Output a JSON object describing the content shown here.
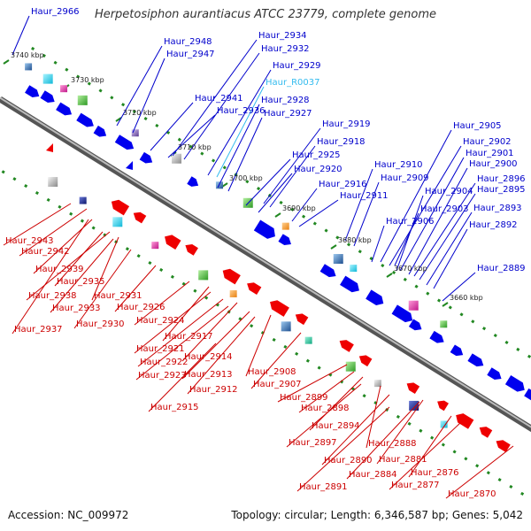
{
  "title": "Herpetosiphon aurantiacus ATCC 23779, complete genome",
  "footer": {
    "accession": "Accession: NC_009972",
    "summary": "Topology: circular; Length: 6,346,587 bp; Genes: 5,042"
  },
  "colors": {
    "plus_label": "#0000cc",
    "rna_label": "#33bbee",
    "minus_label": "#cc0000",
    "plus_arrow": "#0000ee",
    "minus_arrow": "#ee0000",
    "backbone": "#888888",
    "tick": "#228822"
  },
  "ticks": [
    "3740 kbp",
    "3730 kbp",
    "3720 kbp",
    "3710 kbp",
    "3700 kbp",
    "3690 kbp",
    "3680 kbp",
    "3670 kbp",
    "3660 kbp"
  ],
  "plus_labels": [
    "Haur_2966",
    "Haur_2948",
    "Haur_2947",
    "Haur_2934",
    "Haur_2932",
    "Haur_2929",
    "Haur_R0037",
    "Haur_2941",
    "Haur_2936",
    "Haur_2928",
    "Haur_2927",
    "Haur_2919",
    "Haur_2918",
    "Haur_2925",
    "Haur_2920",
    "Haur_2916",
    "Haur_2911",
    "Haur_2910",
    "Haur_2909",
    "Haur_2905",
    "Haur_2902",
    "Haur_2901",
    "Haur_2900",
    "Haur_2896",
    "Haur_2895",
    "Haur_2904",
    "Haur_2903",
    "Haur_2906",
    "Haur_2893",
    "Haur_2892",
    "Haur_2889"
  ],
  "minus_labels": [
    "Haur_2943",
    "Haur_2942",
    "Haur_2939",
    "Haur_2935",
    "Haur_2938",
    "Haur_2931",
    "Haur_2933",
    "Haur_2937",
    "Haur_2930",
    "Haur_2926",
    "Haur_2924",
    "Haur_2917",
    "Haur_2921",
    "Haur_2914",
    "Haur_2922",
    "Haur_2923",
    "Haur_2913",
    "Haur_2908",
    "Haur_2912",
    "Haur_2907",
    "Haur_2915",
    "Haur_2899",
    "Haur_2898",
    "Haur_2894",
    "Haur_2897",
    "Haur_2888",
    "Haur_2890",
    "Haur_2881",
    "Haur_2884",
    "Haur_2876",
    "Haur_2891",
    "Haur_2877",
    "Haur_2870"
  ]
}
